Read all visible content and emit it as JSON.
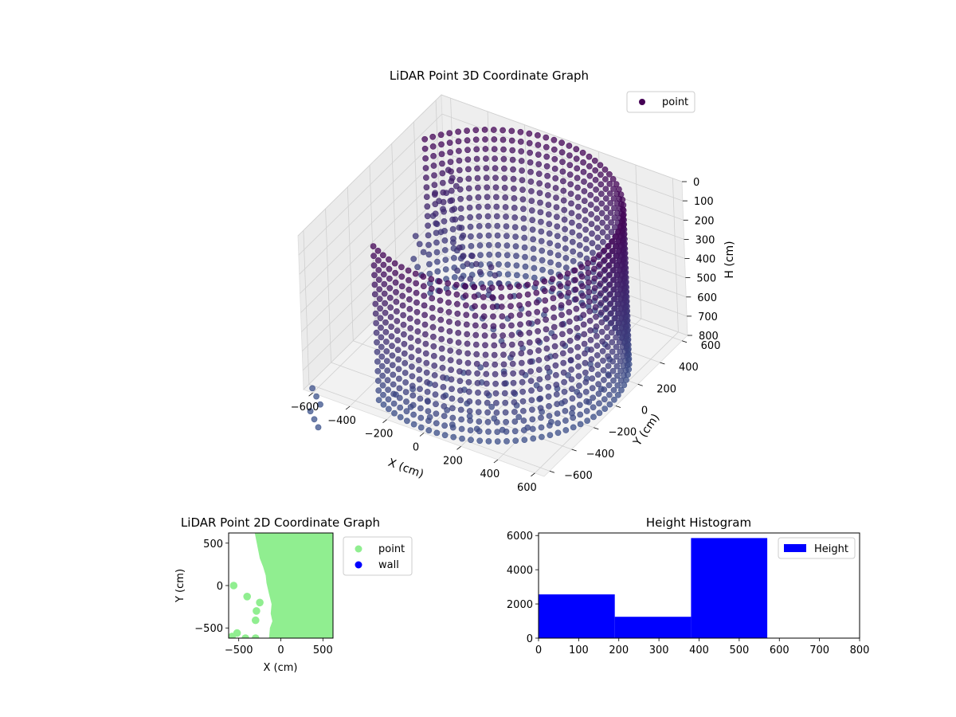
{
  "chart_data": [
    {
      "type": "scatter3d",
      "title": "LiDAR Point 3D Coordinate Graph",
      "xlabel": "X (cm)",
      "ylabel": "Y (cm)",
      "zlabel": "H (cm)",
      "xlim": [
        -650,
        650
      ],
      "ylim": [
        -650,
        650
      ],
      "zlim": [
        0,
        800
      ],
      "z_inverted": true,
      "x_ticks": [
        -600,
        -400,
        -200,
        0,
        200,
        400,
        600
      ],
      "y_ticks": [
        -600,
        -400,
        -200,
        0,
        200,
        400,
        600
      ],
      "z_ticks": [
        0,
        100,
        200,
        300,
        400,
        500,
        600,
        700,
        800
      ],
      "legend": {
        "placement": "top-right",
        "entries": [
          {
            "label": "point",
            "color": "#440154"
          }
        ]
      },
      "grid": true,
      "colors": {
        "near": "#440154",
        "far": "#3b528b",
        "pane": "#f2f2f2"
      },
      "series": [
        {
          "name": "point",
          "wall": {
            "shape": "arc",
            "radius": 620,
            "theta_start_deg": -120,
            "theta_end_deg": 150,
            "h_range": [
              0,
              800
            ]
          },
          "floor": {
            "h": 800
          },
          "obstacles": [
            {
              "x": -520,
              "y": 480,
              "h": 250
            },
            {
              "x": -560,
              "y": 420,
              "h": 350
            },
            {
              "x": -600,
              "y": 300,
              "h": 520
            },
            {
              "x": -430,
              "y": 380,
              "h": 420
            },
            {
              "x": -300,
              "y": 200,
              "h": 420
            },
            {
              "x": -200,
              "y": 150,
              "h": 400
            },
            {
              "x": -80,
              "y": 120,
              "h": 400
            },
            {
              "x": -620,
              "y": -620,
              "h": 800
            }
          ]
        }
      ]
    },
    {
      "type": "scatter",
      "title": "LiDAR Point 2D Coordinate Graph",
      "xlabel": "X (cm)",
      "ylabel": "Y (cm)",
      "xlim": [
        -620,
        620
      ],
      "ylim": [
        -620,
        620
      ],
      "x_ticks": [
        -500,
        0,
        500
      ],
      "y_ticks": [
        -500,
        0,
        500
      ],
      "legend": {
        "placement": "right",
        "entries": [
          {
            "label": "point",
            "color": "#90ee90"
          },
          {
            "label": "wall",
            "color": "#0000ff"
          }
        ]
      },
      "series": [
        {
          "name": "point",
          "color": "#90ee90",
          "region_boundary": [
            [
              -310,
              620
            ],
            [
              -290,
              520
            ],
            [
              -270,
              420
            ],
            [
              -250,
              320
            ],
            [
              -210,
              220
            ],
            [
              -180,
              120
            ],
            [
              -170,
              30
            ],
            [
              -140,
              -100
            ],
            [
              -110,
              -220
            ],
            [
              -120,
              -330
            ],
            [
              -100,
              -420
            ],
            [
              -130,
              -500
            ],
            [
              -140,
              -620
            ]
          ],
          "points": [
            [
              -560,
              0
            ],
            [
              -400,
              -130
            ],
            [
              -250,
              -200
            ],
            [
              -290,
              -300
            ],
            [
              -300,
              -410
            ],
            [
              -520,
              -560
            ],
            [
              -580,
              -600
            ],
            [
              -420,
              -620
            ],
            [
              -300,
              -620
            ]
          ]
        },
        {
          "name": "wall",
          "color": "#0000ff",
          "points": []
        }
      ]
    },
    {
      "type": "bar",
      "title": "Height Histogram",
      "xlabel": "",
      "ylabel": "",
      "xlim": [
        0,
        800
      ],
      "ylim": [
        0,
        6150
      ],
      "x_ticks": [
        0,
        100,
        200,
        300,
        400,
        500,
        600,
        700,
        800
      ],
      "y_ticks": [
        0,
        2000,
        4000,
        6000
      ],
      "bin_edges": [
        0,
        190,
        380,
        570
      ],
      "values": [
        2560,
        1250,
        5850
      ],
      "legend": {
        "placement": "top-right",
        "entries": [
          {
            "label": "Height",
            "color": "#0000ff"
          }
        ]
      },
      "color": "#0000ff"
    }
  ]
}
